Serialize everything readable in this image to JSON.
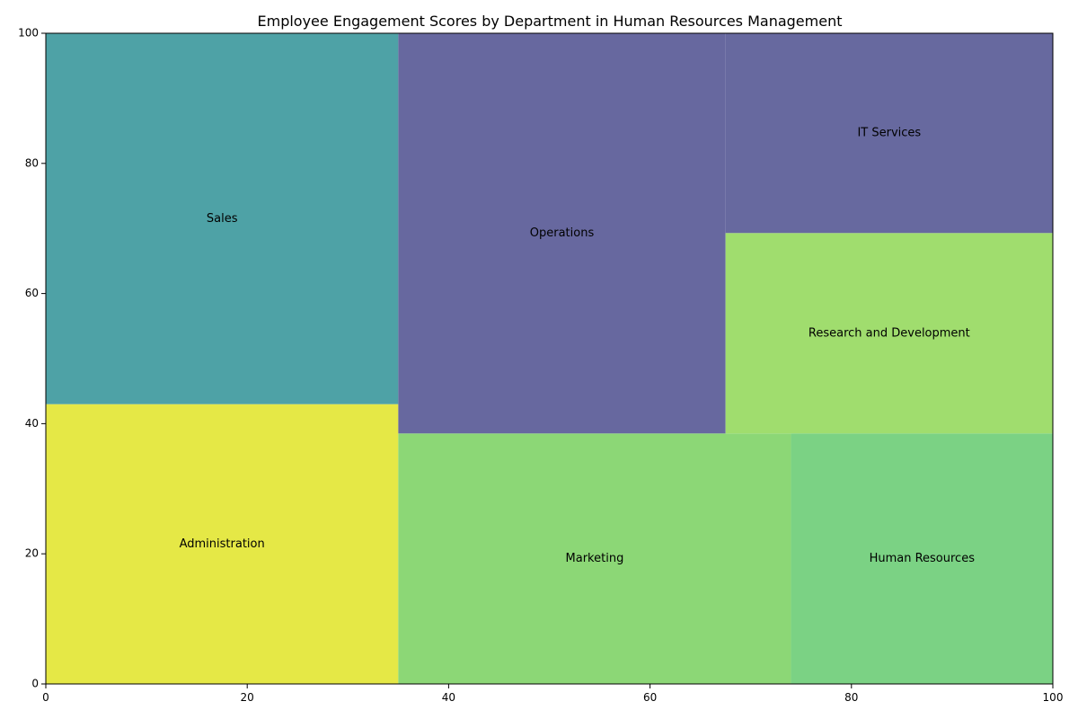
{
  "chart_data": {
    "type": "treemap",
    "title": "Employee Engagement Scores by Department in Human Resources Management",
    "xlim": [
      0,
      100
    ],
    "ylim": [
      0,
      100
    ],
    "xticks": [
      0,
      20,
      40,
      60,
      80,
      100
    ],
    "yticks": [
      0,
      20,
      40,
      60,
      80,
      100
    ],
    "grid": false,
    "legend": "none",
    "cells": [
      {
        "label": "Administration",
        "x": 0,
        "y": 0,
        "dx": 35,
        "dy": 43,
        "color": "#e5e846"
      },
      {
        "label": "Sales",
        "x": 0,
        "y": 43,
        "dx": 35,
        "dy": 57,
        "color": "#4ea2a6"
      },
      {
        "label": "Marketing",
        "x": 35,
        "y": 0,
        "dx": 39,
        "dy": 38.5,
        "color": "#8cd776"
      },
      {
        "label": "Human Resources",
        "x": 74,
        "y": 0,
        "dx": 26,
        "dy": 38.5,
        "color": "#7bd284"
      },
      {
        "label": "Operations",
        "x": 35,
        "y": 38.5,
        "dx": 32.5,
        "dy": 61.5,
        "color": "#67689f"
      },
      {
        "label": "Research and Development",
        "x": 67.5,
        "y": 38.5,
        "dx": 32.5,
        "dy": 30.8,
        "color": "#a0dd6e"
      },
      {
        "label": "IT Services",
        "x": 67.5,
        "y": 69.3,
        "dx": 32.5,
        "dy": 30.7,
        "color": "#67699f"
      }
    ]
  }
}
